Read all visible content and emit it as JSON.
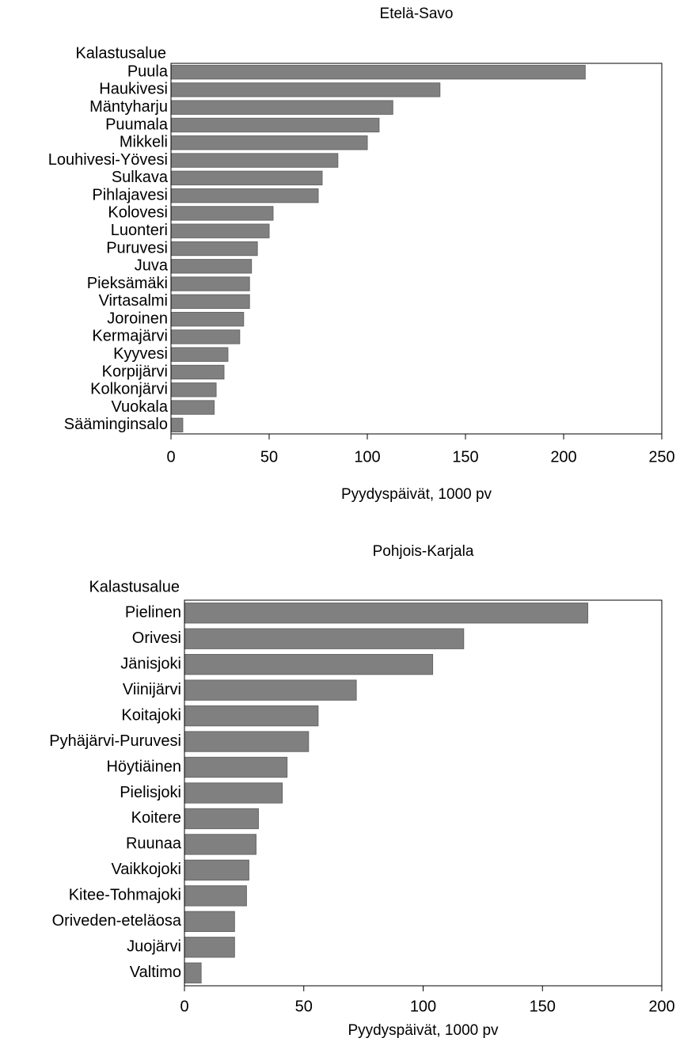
{
  "chart_data": [
    {
      "type": "bar",
      "orientation": "horizontal",
      "title": "Etelä-Savo",
      "ylabel": "Kalastusalue",
      "xlabel": "Pyydyspäivät, 1000 pv",
      "categories": [
        "Puula",
        "Haukivesi",
        "Mäntyharju",
        "Puumala",
        "Mikkeli",
        "Louhivesi-Yövesi",
        "Sulkava",
        "Pihlajavesi",
        "Kolovesi",
        "Luonteri",
        "Puruvesi",
        "Juva",
        "Pieksämäki",
        "Virtasalmi",
        "Joroinen",
        "Kermajärvi",
        "Kyyvesi",
        "Korpijärvi",
        "Kolkonjärvi",
        "Vuokala",
        "Sääminginsalo"
      ],
      "values": [
        211,
        137,
        113,
        106,
        100,
        85,
        77,
        75,
        52,
        50,
        44,
        41,
        40,
        40,
        37,
        35,
        29,
        27,
        23,
        22,
        6
      ],
      "color": "#808080",
      "xlim": [
        0,
        250
      ],
      "xticks": [
        0,
        50,
        100,
        150,
        200,
        250
      ]
    },
    {
      "type": "bar",
      "orientation": "horizontal",
      "title": "Pohjois-Karjala",
      "ylabel": "Kalastusalue",
      "xlabel": "Pyydyspäivät, 1000 pv",
      "categories": [
        "Pielinen",
        "Orivesi",
        "Jänisjoki",
        "Viinijärvi",
        "Koitajoki",
        "Pyhäjärvi-Puruvesi",
        "Höytiäinen",
        "Pielisjoki",
        "Koitere",
        "Ruunaa",
        "Vaikkojoki",
        "Kitee-Tohmajoki",
        "Oriveden-eteläosa",
        "Juojärvi",
        "Valtimo"
      ],
      "values": [
        169,
        117,
        104,
        72,
        56,
        52,
        43,
        41,
        31,
        30,
        27,
        26,
        21,
        21,
        7
      ],
      "color": "#808080",
      "xlim": [
        0,
        200
      ],
      "xticks": [
        0,
        50,
        100,
        150,
        200
      ]
    }
  ]
}
